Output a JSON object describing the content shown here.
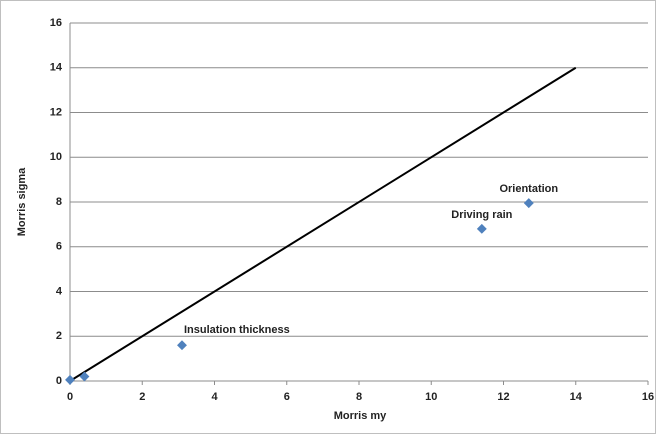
{
  "chart_data": {
    "type": "scatter",
    "x_label": "Morris my",
    "y_label": "Morris sigma",
    "x": [
      0,
      0.4,
      3.1,
      11.4,
      12.7
    ],
    "values": [
      0.05,
      0.2,
      1.6,
      6.8,
      7.95
    ],
    "point_labels": [
      null,
      null,
      "Insulation thickness",
      "Driving rain",
      "Orientation"
    ],
    "color": "#4f81bd",
    "line": {
      "x": [
        0,
        14
      ],
      "values": [
        0,
        14
      ],
      "color": "#000000"
    },
    "xlim": [
      0,
      16
    ],
    "ylim": [
      0,
      16
    ],
    "xticks": [
      0,
      2,
      4,
      6,
      8,
      10,
      12,
      14,
      16
    ],
    "yticks": [
      0,
      2,
      4,
      6,
      8,
      10,
      12,
      14,
      16
    ],
    "grid": true
  }
}
